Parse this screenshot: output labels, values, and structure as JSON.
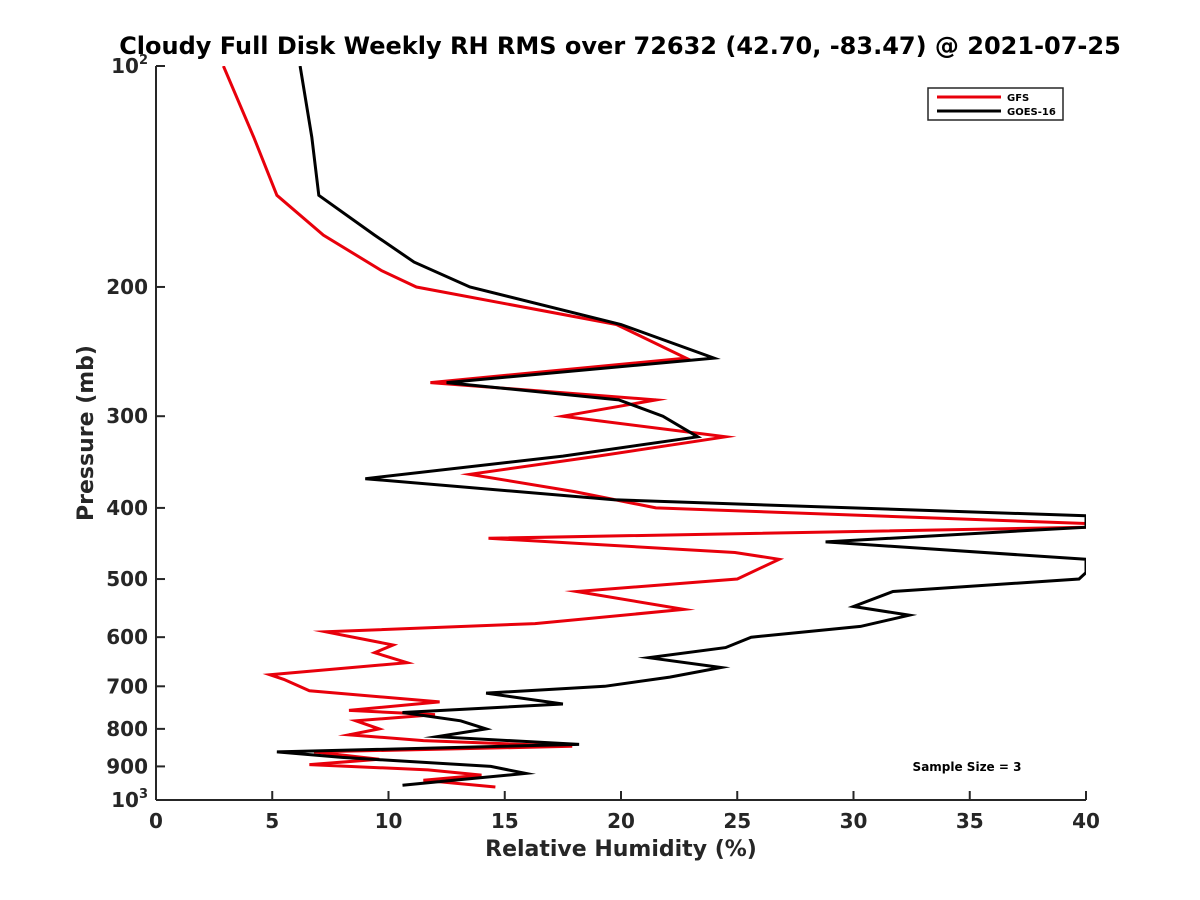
{
  "chart_data": {
    "type": "line",
    "title": "Cloudy Full Disk Weekly RH RMS over 72632 (42.70, -83.47) @ 2021-07-25",
    "xlabel": "Relative Humidity (%)",
    "ylabel": "Pressure (mb)",
    "xlim": [
      0,
      40
    ],
    "ylim": [
      100,
      1000
    ],
    "yscale": "log",
    "y_reversed": true,
    "grid": false,
    "legend_position": "top-right",
    "annotation": "Sample Size = 3",
    "x_ticks": [
      "0",
      "5",
      "10",
      "15",
      "20",
      "25",
      "30",
      "35",
      "40"
    ],
    "x_tick_values": [
      0,
      5,
      10,
      15,
      20,
      25,
      30,
      35,
      40
    ],
    "y_ticks": [
      {
        "value": 100,
        "base": "10",
        "exp": "2"
      },
      {
        "value": 200,
        "base": "200",
        "exp": ""
      },
      {
        "value": 300,
        "base": "300",
        "exp": ""
      },
      {
        "value": 400,
        "base": "400",
        "exp": ""
      },
      {
        "value": 500,
        "base": "500",
        "exp": ""
      },
      {
        "value": 600,
        "base": "600",
        "exp": ""
      },
      {
        "value": 700,
        "base": "700",
        "exp": ""
      },
      {
        "value": 800,
        "base": "800",
        "exp": ""
      },
      {
        "value": 900,
        "base": "900",
        "exp": ""
      },
      {
        "value": 1000,
        "base": "10",
        "exp": "3"
      }
    ],
    "series": [
      {
        "name": "GFS",
        "color": "#e8000b",
        "points": [
          [
            2.9,
            100
          ],
          [
            4.2,
            125
          ],
          [
            5.2,
            150
          ],
          [
            7.2,
            170
          ],
          [
            9.7,
            190
          ],
          [
            11.2,
            200
          ],
          [
            19.8,
            225
          ],
          [
            22.8,
            250
          ],
          [
            11.8,
            270
          ],
          [
            21.5,
            285
          ],
          [
            17.5,
            300
          ],
          [
            24.5,
            320
          ],
          [
            19.0,
            340
          ],
          [
            13.5,
            360
          ],
          [
            18.0,
            380
          ],
          [
            21.5,
            400
          ],
          [
            40,
            420
          ],
          [
            40,
            425
          ],
          [
            14.3,
            440
          ],
          [
            24.9,
            460
          ],
          [
            26.8,
            470
          ],
          [
            25.0,
            500
          ],
          [
            18.1,
            520
          ],
          [
            22.7,
            550
          ],
          [
            16.3,
            575
          ],
          [
            7.3,
            590
          ],
          [
            10.2,
            615
          ],
          [
            9.4,
            630
          ],
          [
            10.8,
            650
          ],
          [
            4.9,
            675
          ],
          [
            5.5,
            685
          ],
          [
            6.6,
            710
          ],
          [
            12.2,
            735
          ],
          [
            8.3,
            755
          ],
          [
            12.0,
            765
          ],
          [
            8.6,
            780
          ],
          [
            9.6,
            800
          ],
          [
            8.3,
            815
          ],
          [
            11.5,
            830
          ],
          [
            17.9,
            845
          ],
          [
            6.8,
            860
          ],
          [
            9.6,
            880
          ],
          [
            6.6,
            895
          ],
          [
            11.7,
            910
          ],
          [
            14.0,
            925
          ],
          [
            11.5,
            940
          ],
          [
            14.6,
            960
          ]
        ]
      },
      {
        "name": "GOES-16",
        "color": "#000000",
        "points": [
          [
            6.2,
            100
          ],
          [
            6.7,
            125
          ],
          [
            7.0,
            150
          ],
          [
            9.4,
            170
          ],
          [
            11.1,
            185
          ],
          [
            13.5,
            200
          ],
          [
            20.0,
            225
          ],
          [
            24.0,
            250
          ],
          [
            12.5,
            270
          ],
          [
            19.9,
            285
          ],
          [
            21.8,
            300
          ],
          [
            23.3,
            320
          ],
          [
            17.5,
            340
          ],
          [
            9.0,
            365
          ],
          [
            19.7,
            390
          ],
          [
            40,
            410
          ],
          [
            40,
            425
          ],
          [
            28.8,
            445
          ],
          [
            40,
            470
          ],
          [
            40,
            490
          ],
          [
            39.7,
            500
          ],
          [
            31.7,
            520
          ],
          [
            30.0,
            545
          ],
          [
            32.4,
            560
          ],
          [
            30.3,
            580
          ],
          [
            25.6,
            600
          ],
          [
            24.5,
            620
          ],
          [
            21.2,
            640
          ],
          [
            24.3,
            660
          ],
          [
            22.1,
            680
          ],
          [
            19.3,
            700
          ],
          [
            14.2,
            715
          ],
          [
            17.5,
            740
          ],
          [
            10.6,
            760
          ],
          [
            13.1,
            780
          ],
          [
            14.2,
            800
          ],
          [
            12.1,
            820
          ],
          [
            18.2,
            840
          ],
          [
            5.2,
            860
          ],
          [
            8.0,
            875
          ],
          [
            14.4,
            900
          ],
          [
            15.9,
            920
          ],
          [
            12.8,
            940
          ],
          [
            10.6,
            955
          ]
        ]
      }
    ]
  }
}
